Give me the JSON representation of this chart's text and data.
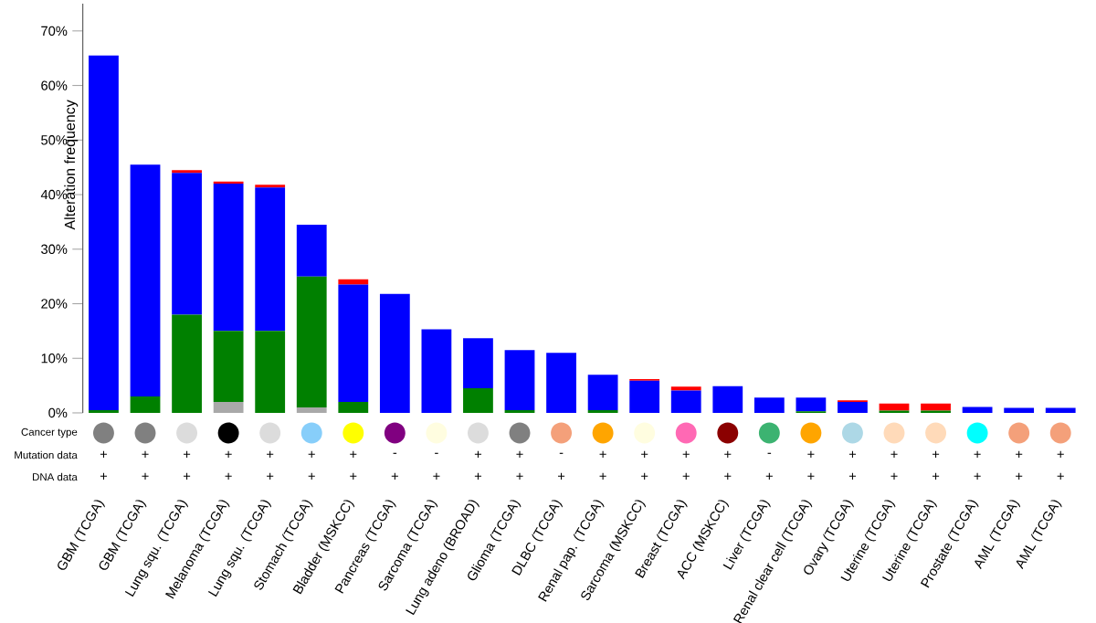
{
  "chart_data": {
    "type": "bar",
    "stacked": true,
    "ylabel": "Alteration frequency",
    "categories": [
      "GBM (TCGA)",
      "GBM (TCGA)",
      "Lung squ. (TCGA)",
      "Melanoma (TCGA)",
      "Lung squ. (TCGA)",
      "Stomach (TCGA)",
      "Bladder (MSKCC)",
      "Pancreas (TCGA)",
      "Sarcoma (TCGA)",
      "Lung adeno (BROAD)",
      "Glioma (TCGA)",
      "DLBC (TCGA)",
      "Renal pap. (TCGA)",
      "Sarcoma (MSKCC)",
      "Breast (TCGA)",
      "ACC (MSKCC)",
      "Liver (TCGA)",
      "Renal clear cell (TCGA)",
      "Ovary (TCGA)",
      "Uterine (TCGA)",
      "Uterine (TCGA)",
      "Prostate (TCGA)",
      "AML (TCGA)",
      "AML (TCGA)"
    ],
    "series": [
      {
        "color": "#a9a9a9",
        "values": [
          0,
          null,
          null,
          2,
          null,
          1,
          0,
          0,
          0,
          null,
          0,
          0,
          0,
          0,
          0,
          0,
          0,
          0,
          0,
          0,
          0,
          0,
          0,
          0
        ]
      },
      {
        "color": "#008000",
        "values": [
          0.5,
          3,
          18,
          13,
          15,
          24,
          2,
          0,
          0,
          4.5,
          0.5,
          0,
          0.5,
          0,
          0,
          0,
          0,
          0.3,
          0,
          0.4,
          0.4,
          0,
          0,
          0
        ]
      },
      {
        "color": "#0000ff",
        "values": [
          65,
          42.5,
          26,
          27,
          26.3,
          9.5,
          21.5,
          21.8,
          15.3,
          9.2,
          11,
          11,
          6.5,
          5.9,
          4.1,
          4.9,
          2.8,
          2.5,
          2,
          0,
          0,
          1.1,
          0.9,
          0.9
        ]
      },
      {
        "color": "#ff0000",
        "values": [
          0,
          0,
          0.5,
          0.4,
          0.5,
          0,
          1,
          0,
          0,
          0,
          0,
          0,
          0,
          0.3,
          0.7,
          0,
          0,
          0,
          0.3,
          1.3,
          1.3,
          0,
          0,
          0
        ]
      }
    ],
    "ylim": [
      0,
      75
    ],
    "yticks": [
      {
        "value": 0,
        "label": "0%"
      },
      {
        "value": 10,
        "label": "10%"
      },
      {
        "value": 20,
        "label": "20%"
      },
      {
        "value": 30,
        "label": "30%"
      },
      {
        "value": 40,
        "label": "40%"
      },
      {
        "value": 50,
        "label": "50%"
      },
      {
        "value": 60,
        "label": "60%"
      },
      {
        "value": 70,
        "label": "70%"
      }
    ],
    "annotations": [
      "Cancer type",
      "Mutation data",
      "DNA data",
      "+",
      "+",
      "+",
      "+",
      "+",
      "+",
      "+",
      "-",
      "-",
      "+",
      "+",
      "-",
      "+",
      "+",
      "+",
      "+",
      "-",
      "+",
      "+",
      "+",
      "+",
      "+",
      "+",
      "+",
      "+",
      "+",
      "+",
      "+",
      "+",
      "+",
      "+",
      "+",
      "+",
      "+",
      "+",
      "+",
      "+",
      "+",
      "+",
      "+",
      "+",
      "+",
      "+",
      "+",
      "+",
      "+",
      "+",
      "+"
    ]
  }
}
